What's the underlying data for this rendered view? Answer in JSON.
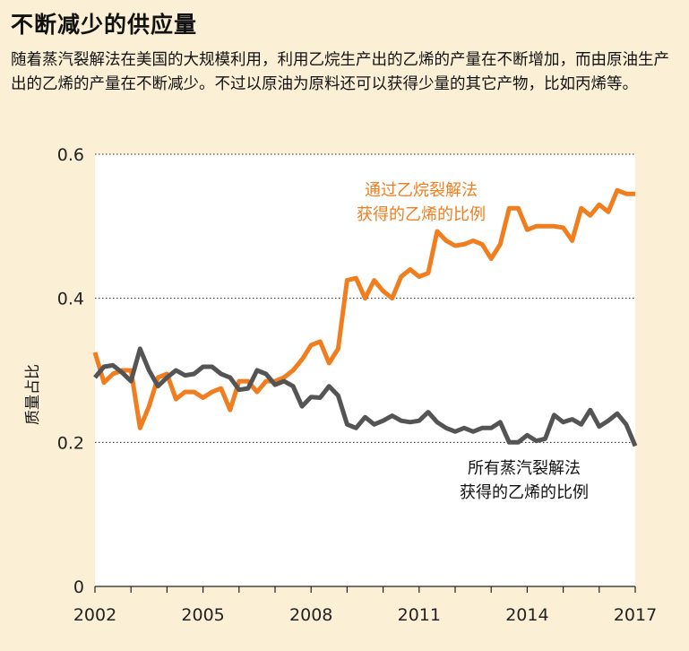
{
  "title": "不断减少的供应量",
  "subtitle": "随着蒸汽裂解法在美国的大规模利用，利用乙烷生产出的乙烯的产量在不断增加，而由原油生产出的乙烯的产量在不断减少。不过以原油为原料还可以获得少量的其它产物，比如丙烯等。",
  "colors": {
    "background": "#fbf0d6",
    "plot_background": "#ffffff",
    "ethane": "#f07d1e",
    "all_cracking": "#545454"
  },
  "chart_data": {
    "type": "line",
    "title": "不断减少的供应量",
    "xlabel": "",
    "ylabel": "质量占比",
    "xlim": [
      2002,
      2017
    ],
    "ylim": [
      0,
      0.6
    ],
    "x_ticks": [
      "2002",
      "2005",
      "2008",
      "2011",
      "2014",
      "2017"
    ],
    "y_ticks": [
      "0",
      "0.2",
      "0.4",
      "0.6"
    ],
    "grid": "horizontal dotted",
    "series": [
      {
        "name": "通过乙烷裂解法获得的乙烯的比例",
        "label_lines": [
          "通过乙烷裂解法",
          "获得的乙烯的比例"
        ],
        "color": "#f07d1e",
        "x": [
          2002.0,
          2002.25,
          2002.5,
          2002.75,
          2003.0,
          2003.25,
          2003.5,
          2003.75,
          2004.0,
          2004.25,
          2004.5,
          2004.75,
          2005.0,
          2005.25,
          2005.5,
          2005.75,
          2006.0,
          2006.25,
          2006.5,
          2006.75,
          2007.0,
          2007.25,
          2007.5,
          2007.75,
          2008.0,
          2008.25,
          2008.5,
          2008.75,
          2009.0,
          2009.25,
          2009.5,
          2009.75,
          2010.0,
          2010.25,
          2010.5,
          2010.75,
          2011.0,
          2011.25,
          2011.5,
          2011.75,
          2012.0,
          2012.25,
          2012.5,
          2012.75,
          2013.0,
          2013.25,
          2013.5,
          2013.75,
          2014.0,
          2014.25,
          2014.5,
          2014.75,
          2015.0,
          2015.25,
          2015.5,
          2015.75,
          2016.0,
          2016.25,
          2016.5,
          2016.75,
          2017.0
        ],
        "values": [
          0.325,
          0.283,
          0.295,
          0.3,
          0.3,
          0.22,
          0.25,
          0.29,
          0.295,
          0.26,
          0.27,
          0.27,
          0.262,
          0.27,
          0.275,
          0.245,
          0.285,
          0.285,
          0.27,
          0.285,
          0.285,
          0.29,
          0.3,
          0.315,
          0.335,
          0.34,
          0.31,
          0.33,
          0.425,
          0.428,
          0.4,
          0.425,
          0.41,
          0.4,
          0.43,
          0.44,
          0.43,
          0.435,
          0.493,
          0.48,
          0.473,
          0.475,
          0.48,
          0.475,
          0.455,
          0.475,
          0.525,
          0.525,
          0.495,
          0.5,
          0.5,
          0.5,
          0.498,
          0.48,
          0.525,
          0.515,
          0.53,
          0.52,
          0.55,
          0.545,
          0.545
        ]
      },
      {
        "name": "所有蒸汽裂解法获得的乙烯的比例",
        "label_lines": [
          "所有蒸汽裂解法",
          "获得的乙烯的比例"
        ],
        "color": "#545454",
        "x": [
          2002.0,
          2002.25,
          2002.5,
          2002.75,
          2003.0,
          2003.25,
          2003.5,
          2003.75,
          2004.0,
          2004.25,
          2004.5,
          2004.75,
          2005.0,
          2005.25,
          2005.5,
          2005.75,
          2006.0,
          2006.25,
          2006.5,
          2006.75,
          2007.0,
          2007.25,
          2007.5,
          2007.75,
          2008.0,
          2008.25,
          2008.5,
          2008.75,
          2009.0,
          2009.25,
          2009.5,
          2009.75,
          2010.0,
          2010.25,
          2010.5,
          2010.75,
          2011.0,
          2011.25,
          2011.5,
          2011.75,
          2012.0,
          2012.25,
          2012.5,
          2012.75,
          2013.0,
          2013.25,
          2013.5,
          2013.75,
          2014.0,
          2014.25,
          2014.5,
          2014.75,
          2015.0,
          2015.25,
          2015.5,
          2015.75,
          2016.0,
          2016.25,
          2016.5,
          2016.75,
          2017.0
        ],
        "values": [
          0.29,
          0.305,
          0.307,
          0.297,
          0.285,
          0.33,
          0.3,
          0.278,
          0.29,
          0.3,
          0.293,
          0.295,
          0.305,
          0.305,
          0.295,
          0.29,
          0.273,
          0.275,
          0.3,
          0.295,
          0.28,
          0.285,
          0.278,
          0.25,
          0.263,
          0.262,
          0.278,
          0.265,
          0.225,
          0.22,
          0.235,
          0.225,
          0.23,
          0.237,
          0.23,
          0.228,
          0.23,
          0.242,
          0.228,
          0.22,
          0.215,
          0.22,
          0.215,
          0.22,
          0.22,
          0.228,
          0.2,
          0.2,
          0.21,
          0.202,
          0.205,
          0.238,
          0.228,
          0.232,
          0.225,
          0.245,
          0.222,
          0.23,
          0.24,
          0.225,
          0.195
        ]
      }
    ]
  }
}
